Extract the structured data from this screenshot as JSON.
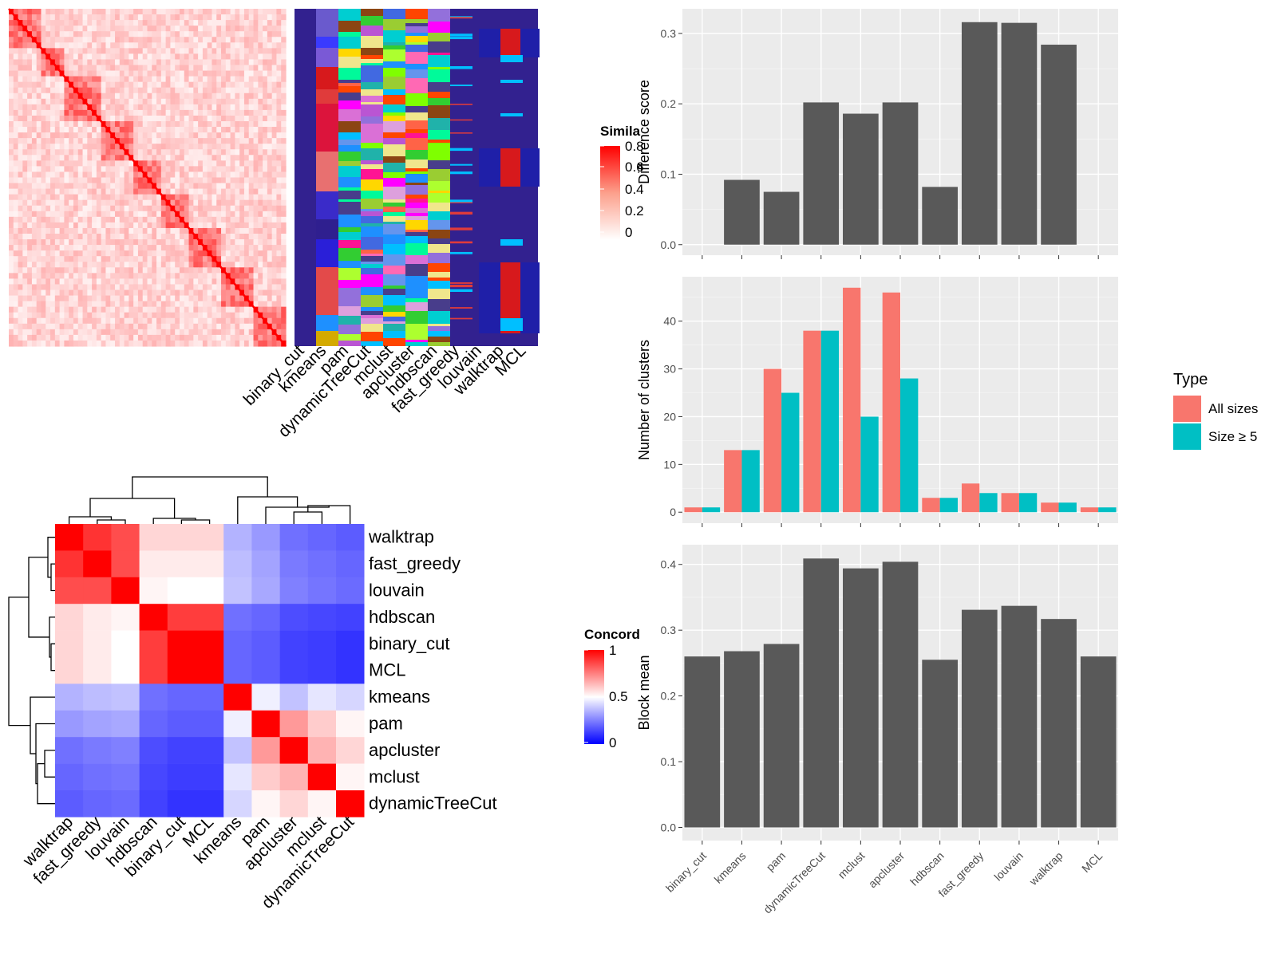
{
  "colors": {
    "heat_high": "#ff0000",
    "heat_low": "#ffffff",
    "conc_low": "#0000ff",
    "conc_mid": "#ffffff",
    "conc_high": "#ff0000",
    "partition_bg": "#32218f",
    "bar_dark": "#595959",
    "all_sizes": "#f8766d",
    "size_ge5": "#00bfc4",
    "panel_bg": "#ebebeb",
    "grid": "#ffffff"
  },
  "similarity_legend": {
    "title": "Simila",
    "ticks": [
      "0.8",
      "0.6",
      "0.4",
      "0.2",
      "0"
    ]
  },
  "concordance_legend": {
    "title": "Concord",
    "ticks": [
      "1",
      "0.5",
      "0"
    ]
  },
  "partition_methods": [
    "binary_cut",
    "kmeans",
    "pam",
    "dynamicTreeCut",
    "mclust",
    "apcluster",
    "hdbscan",
    "fast_greedy",
    "louvain",
    "walktrap",
    "MCL"
  ],
  "concordance_order": [
    "walktrap",
    "fast_greedy",
    "louvain",
    "hdbscan",
    "binary_cut",
    "MCL",
    "kmeans",
    "pam",
    "apcluster",
    "mclust",
    "dynamicTreeCut"
  ],
  "concordance_matrix": [
    [
      1.0,
      0.9,
      0.85,
      0.58,
      0.58,
      0.58,
      0.35,
      0.3,
      0.22,
      0.2,
      0.18
    ],
    [
      0.9,
      1.0,
      0.85,
      0.54,
      0.54,
      0.54,
      0.37,
      0.32,
      0.24,
      0.22,
      0.2
    ],
    [
      0.85,
      0.85,
      1.0,
      0.52,
      0.5,
      0.5,
      0.38,
      0.33,
      0.25,
      0.23,
      0.21
    ],
    [
      0.58,
      0.54,
      0.52,
      1.0,
      0.88,
      0.88,
      0.22,
      0.2,
      0.15,
      0.14,
      0.13
    ],
    [
      0.58,
      0.54,
      0.5,
      0.88,
      1.0,
      1.0,
      0.2,
      0.18,
      0.13,
      0.12,
      0.1
    ],
    [
      0.58,
      0.54,
      0.5,
      0.88,
      1.0,
      1.0,
      0.2,
      0.18,
      0.13,
      0.12,
      0.1
    ],
    [
      0.35,
      0.37,
      0.38,
      0.22,
      0.2,
      0.2,
      1.0,
      0.47,
      0.38,
      0.45,
      0.42
    ],
    [
      0.3,
      0.32,
      0.33,
      0.2,
      0.18,
      0.18,
      0.47,
      1.0,
      0.7,
      0.6,
      0.52
    ],
    [
      0.22,
      0.24,
      0.25,
      0.15,
      0.13,
      0.13,
      0.38,
      0.7,
      1.0,
      0.65,
      0.58
    ],
    [
      0.2,
      0.22,
      0.23,
      0.14,
      0.12,
      0.12,
      0.45,
      0.6,
      0.65,
      1.0,
      0.52
    ],
    [
      0.18,
      0.2,
      0.21,
      0.13,
      0.1,
      0.1,
      0.42,
      0.52,
      0.58,
      0.52,
      1.0
    ]
  ],
  "chart_data": [
    {
      "type": "bar",
      "ylabel": "Difference score",
      "categories": [
        "binary_cut",
        "kmeans",
        "pam",
        "dynamicTreeCut",
        "mclust",
        "apcluster",
        "hdbscan",
        "fast_greedy",
        "louvain",
        "walktrap",
        "MCL"
      ],
      "values": [
        0.0,
        0.092,
        0.075,
        0.202,
        0.186,
        0.202,
        0.082,
        0.316,
        0.315,
        0.284,
        0.0
      ],
      "ylim": [
        -0.015,
        0.335
      ],
      "yticks": [
        "0.0",
        "0.1",
        "0.2",
        "0.3"
      ]
    },
    {
      "type": "bar",
      "ylabel": "Number of clusters",
      "legend_title": "Type",
      "legend_position": "right",
      "categories": [
        "binary_cut",
        "kmeans",
        "pam",
        "dynamicTreeCut",
        "mclust",
        "apcluster",
        "hdbscan",
        "fast_greedy",
        "louvain",
        "walktrap",
        "MCL"
      ],
      "series": [
        {
          "name": "All sizes",
          "values": [
            1,
            13,
            30,
            38,
            47,
            46,
            3,
            6,
            4,
            2,
            1
          ]
        },
        {
          "name": "Size ≥ 5",
          "values": [
            1,
            13,
            25,
            38,
            20,
            28,
            3,
            4,
            4,
            2,
            1
          ]
        }
      ],
      "ylim": [
        -2.3,
        49.3
      ],
      "yticks": [
        "0",
        "10",
        "20",
        "30",
        "40"
      ]
    },
    {
      "type": "bar",
      "ylabel": "Block mean",
      "categories": [
        "binary_cut",
        "kmeans",
        "pam",
        "dynamicTreeCut",
        "mclust",
        "apcluster",
        "hdbscan",
        "fast_greedy",
        "louvain",
        "walktrap",
        "MCL"
      ],
      "values": [
        0.26,
        0.268,
        0.279,
        0.409,
        0.394,
        0.404,
        0.255,
        0.331,
        0.337,
        0.317,
        0.26
      ],
      "ylim": [
        -0.02,
        0.43
      ],
      "yticks": [
        "0.0",
        "0.1",
        "0.2",
        "0.3",
        "0.4"
      ]
    }
  ]
}
